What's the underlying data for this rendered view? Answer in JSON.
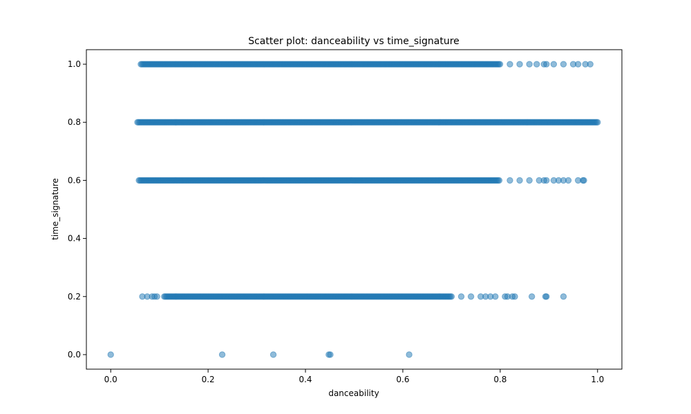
{
  "chart_data": {
    "type": "scatter",
    "title": "Scatter plot: danceability vs time_signature",
    "xlabel": "danceability",
    "ylabel": "time_signature",
    "xlim": [
      -0.05,
      1.05
    ],
    "ylim": [
      -0.05,
      1.05
    ],
    "xticks": [
      0.0,
      0.2,
      0.4,
      0.6,
      0.8,
      1.0
    ],
    "yticks": [
      0.0,
      0.2,
      0.4,
      0.6,
      0.8,
      1.0
    ],
    "xtick_labels": [
      "0.0",
      "0.2",
      "0.4",
      "0.6",
      "0.8",
      "1.0"
    ],
    "ytick_labels": [
      "0.0",
      "0.2",
      "0.4",
      "0.6",
      "0.8",
      "1.0"
    ],
    "grid": false,
    "point_color": "#1f77b4",
    "point_alpha": 0.5,
    "bands": [
      {
        "y": 1.0,
        "x_min": 0.062,
        "x_max": 0.8,
        "sparse_x": [
          0.82,
          0.84,
          0.86,
          0.875,
          0.89,
          0.895,
          0.91,
          0.93,
          0.95,
          0.96,
          0.975,
          0.985
        ]
      },
      {
        "y": 0.8,
        "x_min": 0.055,
        "x_max": 1.0,
        "sparse_x": []
      },
      {
        "y": 0.6,
        "x_min": 0.058,
        "x_max": 0.8,
        "sparse_x": [
          0.82,
          0.84,
          0.86,
          0.88,
          0.89,
          0.895,
          0.91,
          0.92,
          0.93,
          0.94,
          0.96,
          0.97,
          0.972
        ]
      },
      {
        "y": 0.2,
        "x_min": 0.11,
        "x_max": 0.7,
        "sparse_x": [
          0.065,
          0.075,
          0.085,
          0.09,
          0.095,
          0.72,
          0.74,
          0.76,
          0.77,
          0.78,
          0.79,
          0.81,
          0.815,
          0.825,
          0.83,
          0.865,
          0.893,
          0.895,
          0.93
        ]
      },
      {
        "y": 0.0,
        "x_min": 0.0,
        "x_max": 0.0,
        "sparse_x": [
          0.0,
          0.229,
          0.334,
          0.448,
          0.451,
          0.613
        ]
      }
    ]
  }
}
